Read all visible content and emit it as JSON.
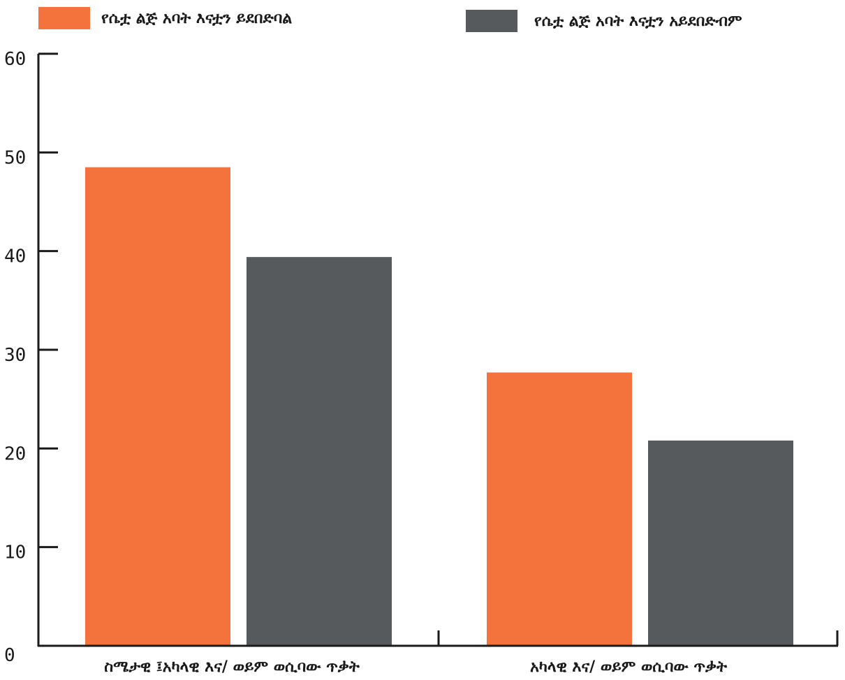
{
  "chart_data": {
    "type": "bar",
    "categories": [
      "ስሜታዊ ፤አካላዊ እና/ ወይም ወሲባው ጥቃት",
      "አካላዊ እና/ ወይም ወሲባው ጥቃት"
    ],
    "series": [
      {
        "name": "የሴቷ ልጅ አባት እናቷን ይደበድባል",
        "color": "#f4733c",
        "values": [
          48.5,
          27.7
        ]
      },
      {
        "name": "የሴቷ ልጅ አባት እናቷን አይደበድብም",
        "color": "#575a5c",
        "values": [
          39.4,
          20.8
        ]
      }
    ],
    "y_ticks": [
      "0",
      "10",
      "20",
      "30",
      "40",
      "50",
      "60"
    ],
    "ylim": [
      0,
      60
    ],
    "grid": false,
    "legend_position": "top"
  }
}
